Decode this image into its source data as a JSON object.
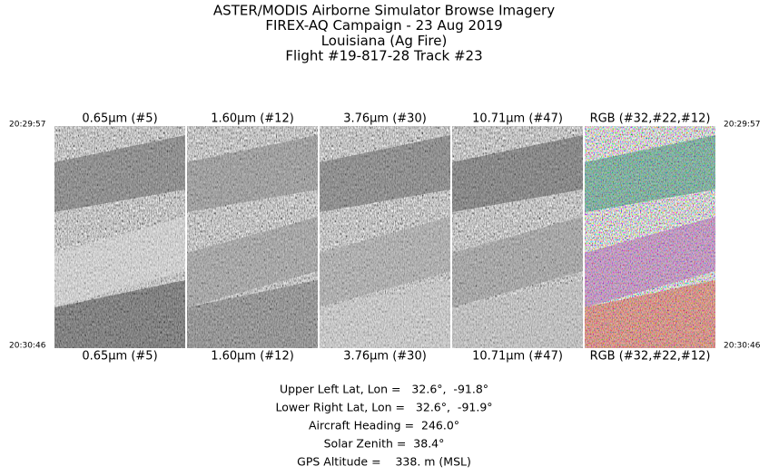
{
  "header": {
    "lines": [
      "ASTER/MODIS Airborne Simulator Browse Imagery",
      "FIREX-AQ Campaign - 23 Aug 2019",
      "Louisiana (Ag Fire)",
      "Flight #19-817-28 Track #23"
    ]
  },
  "times": {
    "start": "20:29:57",
    "end": "20:30:46"
  },
  "panels": [
    {
      "label": "0.65µm (#5)"
    },
    {
      "label": "1.60µm (#12)"
    },
    {
      "label": "3.76µm (#30)"
    },
    {
      "label": "10.71µm (#47)"
    },
    {
      "label": "RGB (#32,#22,#12)"
    }
  ],
  "info": [
    "Upper Left Lat, Lon =   32.6°,  -91.8°",
    "Lower Right Lat, Lon =   32.6°,  -91.9°",
    "Aircraft Heading =  246.0°",
    "Solar Zenith =  38.4°",
    "GPS Altitude =    338. m (MSL)"
  ]
}
